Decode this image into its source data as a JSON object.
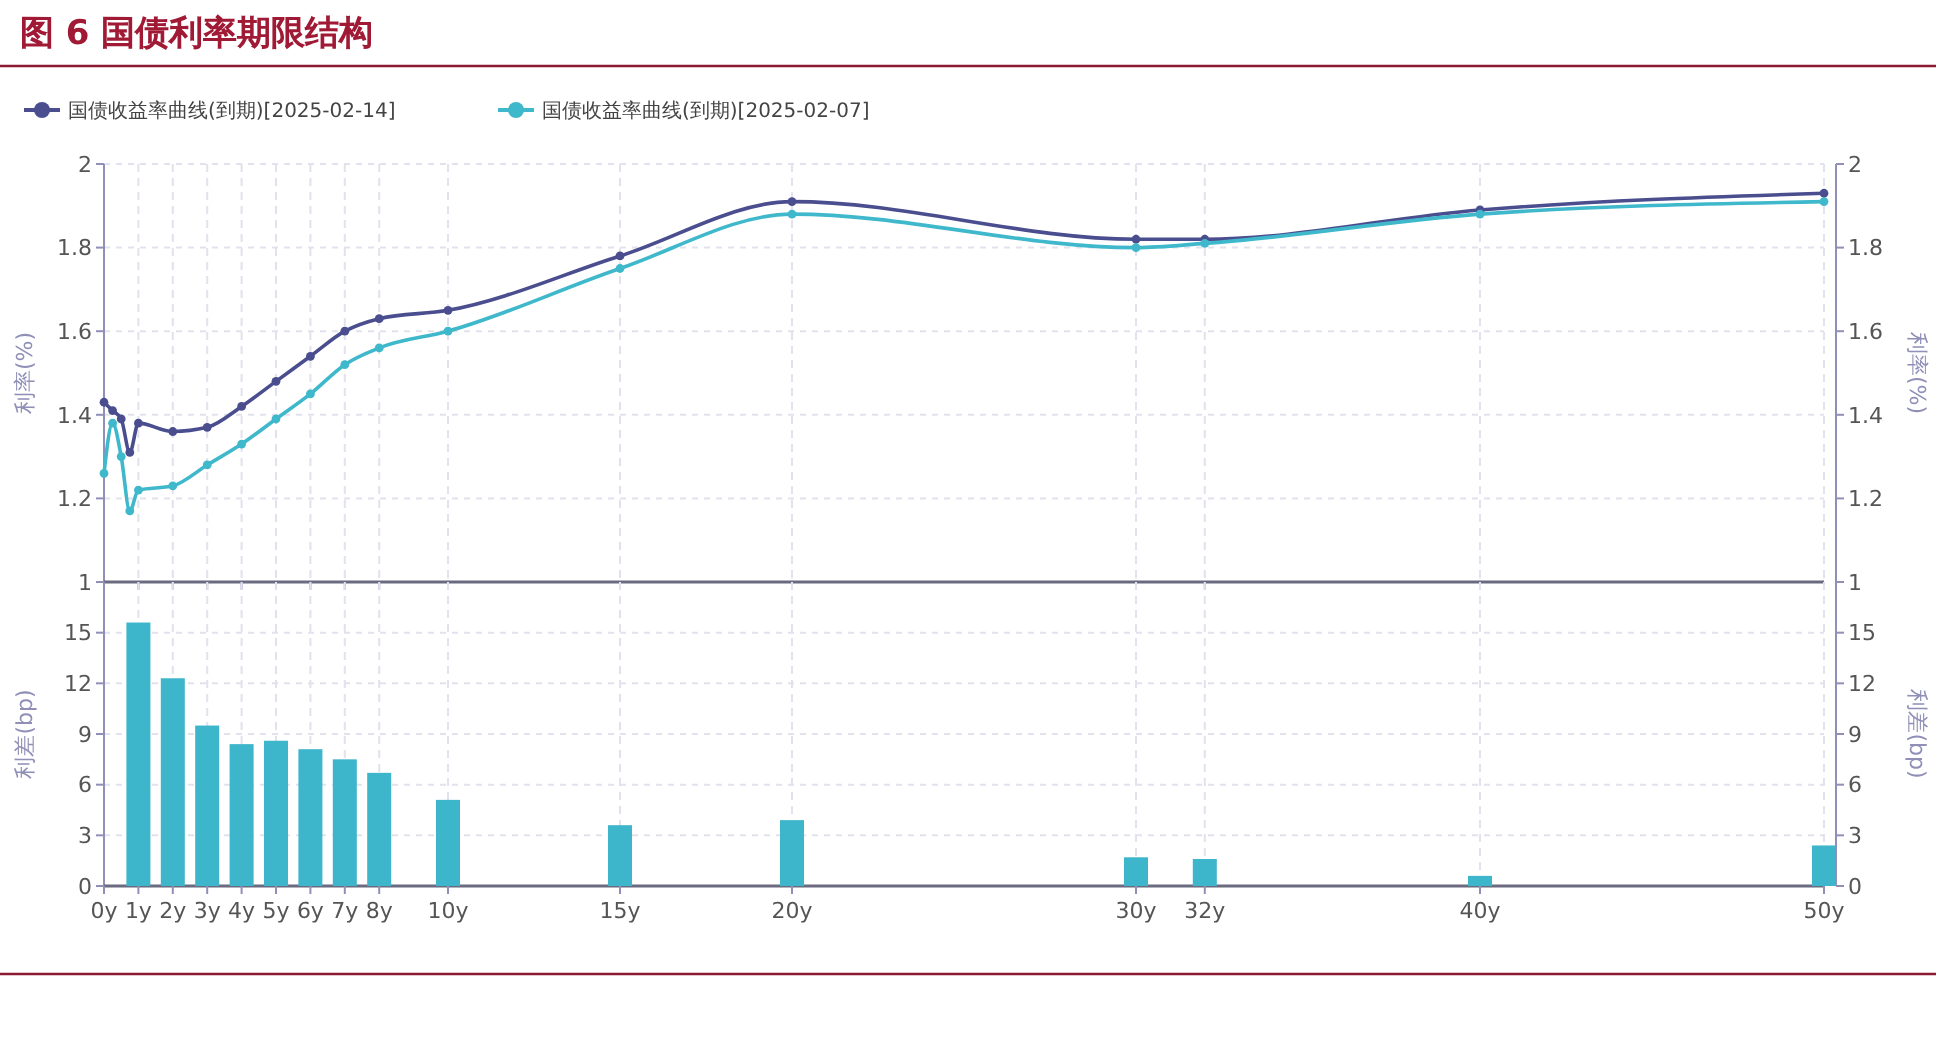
{
  "chart_data": [
    {
      "type": "line",
      "title": "图 6 国债利率期限结构",
      "ylabel": "利率(%)",
      "y2label": "利率(%)",
      "xlim": [
        0,
        50
      ],
      "xticks": [
        {
          "value": 0,
          "label": null
        },
        {
          "value": 1,
          "label": null
        },
        {
          "value": 2,
          "label": null
        },
        {
          "value": 3,
          "label": null
        },
        {
          "value": 4,
          "label": null
        },
        {
          "value": 5,
          "label": null
        },
        {
          "value": 6,
          "label": null
        },
        {
          "value": 7,
          "label": null
        },
        {
          "value": 8,
          "label": null
        },
        {
          "value": 10,
          "label": null
        },
        {
          "value": 15,
          "label": null
        },
        {
          "value": 20,
          "label": null
        },
        {
          "value": 30,
          "label": null
        },
        {
          "value": 32,
          "label": null
        },
        {
          "value": 40,
          "label": null
        },
        {
          "value": 50,
          "label": null
        }
      ],
      "ylim": [
        1,
        2
      ],
      "yticks": [
        1,
        1.2,
        1.4,
        1.6,
        1.8,
        2
      ],
      "y2lim": [
        1,
        2
      ],
      "y2ticks": [
        1,
        1.2,
        1.4,
        1.6,
        1.8,
        2
      ],
      "tick_labels": "y",
      "grid": true,
      "legend": "top left",
      "marker": "circle",
      "series": [
        {
          "name": "国债收益率曲线(到期)[2025-02-14]",
          "color": "#4a4e8f",
          "x": [
            0,
            0.25,
            0.5,
            0.75,
            1,
            2,
            3,
            4,
            5,
            6,
            7,
            8,
            10,
            15,
            20,
            30,
            32,
            40,
            50
          ],
          "values": [
            1.43,
            1.41,
            1.39,
            1.31,
            1.38,
            1.36,
            1.37,
            1.42,
            1.48,
            1.54,
            1.6,
            1.63,
            1.65,
            1.78,
            1.91,
            1.82,
            1.82,
            1.89,
            1.93
          ]
        },
        {
          "name": "国债收益率曲线(到期)[2025-02-07]",
          "color": "#3fb8cc",
          "x": [
            0,
            0.25,
            0.5,
            0.75,
            1,
            2,
            3,
            4,
            5,
            6,
            7,
            8,
            10,
            15,
            20,
            30,
            32,
            40,
            50
          ],
          "values": [
            1.26,
            1.38,
            1.3,
            1.17,
            1.22,
            1.23,
            1.28,
            1.33,
            1.39,
            1.45,
            1.52,
            1.56,
            1.6,
            1.75,
            1.88,
            1.8,
            1.81,
            1.88,
            1.91
          ]
        }
      ]
    },
    {
      "type": "bar",
      "ylabel": "利差(bp)",
      "y2label": "利差(bp)",
      "color": "#3db5ca",
      "xlim": [
        0,
        50
      ],
      "xticks": [
        {
          "value": 0,
          "label": "0y"
        },
        {
          "value": 1,
          "label": "1y"
        },
        {
          "value": 2,
          "label": "2y"
        },
        {
          "value": 3,
          "label": "3y"
        },
        {
          "value": 4,
          "label": "4y"
        },
        {
          "value": 5,
          "label": "5y"
        },
        {
          "value": 6,
          "label": "6y"
        },
        {
          "value": 7,
          "label": "7y"
        },
        {
          "value": 8,
          "label": "8y"
        },
        {
          "value": 10,
          "label": "10y"
        },
        {
          "value": 15,
          "label": "15y"
        },
        {
          "value": 20,
          "label": "20y"
        },
        {
          "value": 30,
          "label": "30y"
        },
        {
          "value": 32,
          "label": "32y"
        },
        {
          "value": 40,
          "label": "40y"
        },
        {
          "value": 50,
          "label": "50y"
        }
      ],
      "ylim": [
        0,
        18
      ],
      "yticks": [
        0,
        3,
        6,
        9,
        12,
        15
      ],
      "y2lim": [
        0,
        18
      ],
      "y2ticks": [
        0,
        3,
        6,
        9,
        12,
        15
      ],
      "grid": true,
      "x": [
        1,
        2,
        3,
        4,
        5,
        6,
        7,
        8,
        10,
        15,
        20,
        30,
        32,
        40,
        50
      ],
      "values": [
        15.6,
        12.3,
        9.5,
        8.4,
        8.6,
        8.1,
        7.5,
        6.7,
        5.1,
        3.6,
        3.9,
        1.7,
        1.6,
        0.6,
        2.4
      ]
    }
  ]
}
